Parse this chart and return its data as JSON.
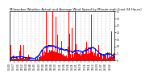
{
  "title": "Milwaukee Weather Actual and Average Wind Speed by Minute mph (Last 24 Hours)",
  "ylim": [
    0,
    35
  ],
  "bar_color": "#ff0000",
  "avg_color": "#0000ff",
  "background_color": "#ffffff",
  "plot_bg_color": "#ffffff",
  "grid_color": "#888888",
  "num_points": 1440,
  "seed": 42,
  "title_fontsize": 2.8,
  "tick_fontsize": 2.2,
  "yticks": [
    0,
    5,
    10,
    15,
    20,
    25,
    30,
    35
  ]
}
